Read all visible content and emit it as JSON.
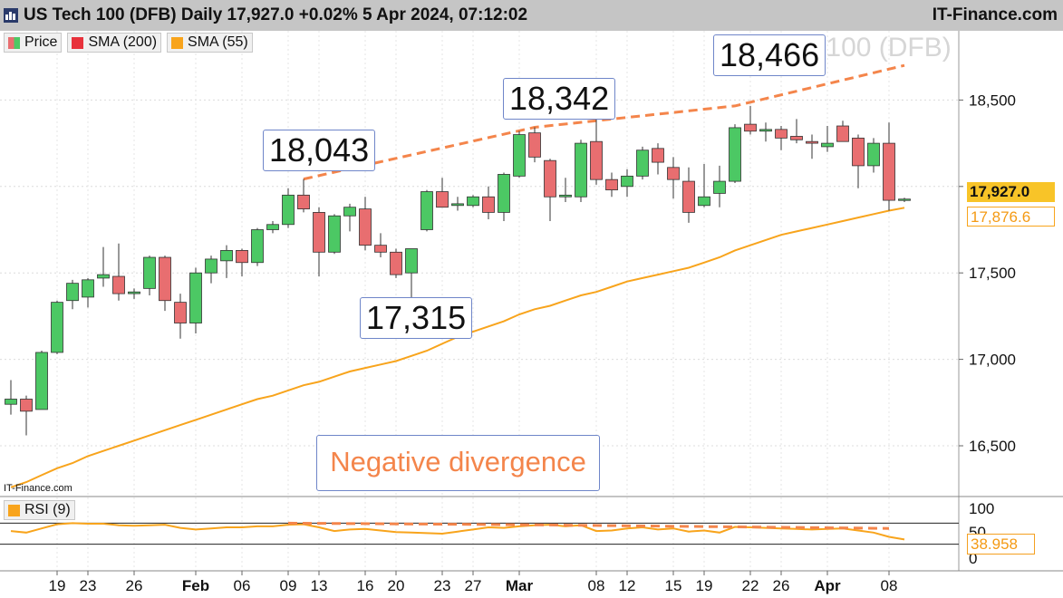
{
  "header": {
    "title": "US Tech 100 (DFB) Daily 17,927.0 +0.02% 5 Apr 2024, 07:12:02",
    "brand": "IT-Finance.com",
    "logo_icon": "demo-badge-icon"
  },
  "legend": {
    "items": [
      {
        "label": "Price",
        "icon": "price-candle-icon",
        "color": "#4cc864"
      },
      {
        "label": "SMA (200)",
        "icon": "sma200-swatch-icon",
        "color": "#e8323c"
      },
      {
        "label": "SMA (55)",
        "icon": "sma55-swatch-icon",
        "color": "#f8a41c"
      }
    ]
  },
  "watermark": "US Tech 100 (DFB)",
  "watermark_small": "IT-Finance.com",
  "annotations": {
    "high1": "18,043",
    "high2": "18,342",
    "high3": "18,466",
    "low1": "17,315",
    "divergence": "Negative divergence"
  },
  "price_badges": {
    "last": "17,927.0",
    "sma55": "17,876.6"
  },
  "rsi": {
    "legend_label": "RSI (9)",
    "value_label": "38.958",
    "color": "#f8a41c"
  },
  "colors": {
    "up": "#4cc864",
    "down": "#e86e70",
    "sma55": "#f8a41c",
    "trendline": "#f4854b",
    "annotation_border": "#6f86c9"
  },
  "chart_data": {
    "type": "candlestick",
    "title": "US Tech 100 (DFB) Daily",
    "ylim": [
      16200,
      18800
    ],
    "yticks": [
      16500,
      17000,
      17500,
      18000,
      18500
    ],
    "ytick_labels": [
      "16,500",
      "17,000",
      "17,500",
      "",
      "18,500"
    ],
    "x_tick_labels": [
      {
        "i": 3,
        "label": "19"
      },
      {
        "i": 5,
        "label": "23"
      },
      {
        "i": 8,
        "label": "26"
      },
      {
        "i": 12,
        "label": "Feb"
      },
      {
        "i": 15,
        "label": "06"
      },
      {
        "i": 18,
        "label": "09"
      },
      {
        "i": 20,
        "label": "13"
      },
      {
        "i": 23,
        "label": "16"
      },
      {
        "i": 25,
        "label": "20"
      },
      {
        "i": 28,
        "label": "23"
      },
      {
        "i": 30,
        "label": "27"
      },
      {
        "i": 33,
        "label": "Mar"
      },
      {
        "i": 38,
        "label": "08"
      },
      {
        "i": 40,
        "label": "12"
      },
      {
        "i": 43,
        "label": "15"
      },
      {
        "i": 45,
        "label": "19"
      },
      {
        "i": 48,
        "label": "22"
      },
      {
        "i": 50,
        "label": "26"
      },
      {
        "i": 53,
        "label": "Apr"
      },
      {
        "i": 57,
        "label": "08"
      }
    ],
    "candles": [
      {
        "o": 16740,
        "h": 16880,
        "l": 16680,
        "c": 16770
      },
      {
        "o": 16770,
        "h": 16790,
        "l": 16560,
        "c": 16700
      },
      {
        "o": 16710,
        "h": 17050,
        "l": 16710,
        "c": 17040
      },
      {
        "o": 17040,
        "h": 17340,
        "l": 17030,
        "c": 17330
      },
      {
        "o": 17340,
        "h": 17460,
        "l": 17290,
        "c": 17440
      },
      {
        "o": 17360,
        "h": 17470,
        "l": 17300,
        "c": 17460
      },
      {
        "o": 17470,
        "h": 17650,
        "l": 17420,
        "c": 17490
      },
      {
        "o": 17480,
        "h": 17670,
        "l": 17340,
        "c": 17380
      },
      {
        "o": 17380,
        "h": 17410,
        "l": 17350,
        "c": 17390
      },
      {
        "o": 17410,
        "h": 17600,
        "l": 17370,
        "c": 17590
      },
      {
        "o": 17590,
        "h": 17600,
        "l": 17280,
        "c": 17340
      },
      {
        "o": 17330,
        "h": 17380,
        "l": 17120,
        "c": 17210
      },
      {
        "o": 17210,
        "h": 17530,
        "l": 17150,
        "c": 17500
      },
      {
        "o": 17500,
        "h": 17600,
        "l": 17440,
        "c": 17580
      },
      {
        "o": 17570,
        "h": 17660,
        "l": 17470,
        "c": 17630
      },
      {
        "o": 17630,
        "h": 17640,
        "l": 17480,
        "c": 17560
      },
      {
        "o": 17560,
        "h": 17760,
        "l": 17540,
        "c": 17750
      },
      {
        "o": 17750,
        "h": 17800,
        "l": 17730,
        "c": 17780
      },
      {
        "o": 17780,
        "h": 17990,
        "l": 17760,
        "c": 17950
      },
      {
        "o": 17950,
        "h": 18043,
        "l": 17850,
        "c": 17870
      },
      {
        "o": 17850,
        "h": 17880,
        "l": 17480,
        "c": 17620
      },
      {
        "o": 17620,
        "h": 17840,
        "l": 17610,
        "c": 17830
      },
      {
        "o": 17830,
        "h": 17900,
        "l": 17740,
        "c": 17880
      },
      {
        "o": 17870,
        "h": 17940,
        "l": 17630,
        "c": 17660
      },
      {
        "o": 17660,
        "h": 17730,
        "l": 17590,
        "c": 17620
      },
      {
        "o": 17620,
        "h": 17640,
        "l": 17470,
        "c": 17490
      },
      {
        "o": 17500,
        "h": 17640,
        "l": 17315,
        "c": 17640
      },
      {
        "o": 17750,
        "h": 17980,
        "l": 17740,
        "c": 17970
      },
      {
        "o": 17970,
        "h": 18050,
        "l": 17880,
        "c": 17880
      },
      {
        "o": 17890,
        "h": 17940,
        "l": 17860,
        "c": 17900
      },
      {
        "o": 17890,
        "h": 17950,
        "l": 17880,
        "c": 17940
      },
      {
        "o": 17940,
        "h": 18000,
        "l": 17810,
        "c": 17850
      },
      {
        "o": 17850,
        "h": 18080,
        "l": 17800,
        "c": 18070
      },
      {
        "o": 18060,
        "h": 18320,
        "l": 18050,
        "c": 18300
      },
      {
        "o": 18310,
        "h": 18342,
        "l": 18140,
        "c": 18170
      },
      {
        "o": 18150,
        "h": 18160,
        "l": 17800,
        "c": 17940
      },
      {
        "o": 17940,
        "h": 18050,
        "l": 17910,
        "c": 17950
      },
      {
        "o": 17940,
        "h": 18270,
        "l": 17910,
        "c": 18250
      },
      {
        "o": 18260,
        "h": 18400,
        "l": 18010,
        "c": 18040
      },
      {
        "o": 18040,
        "h": 18080,
        "l": 17940,
        "c": 17980
      },
      {
        "o": 18000,
        "h": 18100,
        "l": 17940,
        "c": 18060
      },
      {
        "o": 18060,
        "h": 18230,
        "l": 18040,
        "c": 18210
      },
      {
        "o": 18220,
        "h": 18250,
        "l": 18070,
        "c": 18140
      },
      {
        "o": 18110,
        "h": 18170,
        "l": 17930,
        "c": 18040
      },
      {
        "o": 18030,
        "h": 18110,
        "l": 17790,
        "c": 17850
      },
      {
        "o": 17890,
        "h": 18130,
        "l": 17880,
        "c": 17940
      },
      {
        "o": 17960,
        "h": 18120,
        "l": 17880,
        "c": 18030
      },
      {
        "o": 18030,
        "h": 18360,
        "l": 18020,
        "c": 18340
      },
      {
        "o": 18360,
        "h": 18466,
        "l": 18300,
        "c": 18320
      },
      {
        "o": 18320,
        "h": 18370,
        "l": 18260,
        "c": 18330
      },
      {
        "o": 18330,
        "h": 18350,
        "l": 18210,
        "c": 18280
      },
      {
        "o": 18290,
        "h": 18390,
        "l": 18250,
        "c": 18270
      },
      {
        "o": 18260,
        "h": 18300,
        "l": 18160,
        "c": 18250
      },
      {
        "o": 18230,
        "h": 18350,
        "l": 18200,
        "c": 18250
      },
      {
        "o": 18350,
        "h": 18380,
        "l": 18260,
        "c": 18260
      },
      {
        "o": 18280,
        "h": 18300,
        "l": 17990,
        "c": 18120
      },
      {
        "o": 18120,
        "h": 18280,
        "l": 18080,
        "c": 18250
      },
      {
        "o": 18250,
        "h": 18370,
        "l": 17860,
        "c": 17920
      },
      {
        "o": 17920,
        "h": 17935,
        "l": 17910,
        "c": 17927
      }
    ],
    "sma55": [
      16260,
      16290,
      16330,
      16370,
      16400,
      16440,
      16470,
      16500,
      16530,
      16560,
      16590,
      16620,
      16650,
      16680,
      16710,
      16740,
      16770,
      16790,
      16820,
      16850,
      16870,
      16900,
      16930,
      16950,
      16970,
      16990,
      17020,
      17050,
      17090,
      17130,
      17160,
      17190,
      17220,
      17260,
      17290,
      17310,
      17340,
      17370,
      17390,
      17420,
      17450,
      17470,
      17490,
      17510,
      17530,
      17560,
      17590,
      17630,
      17660,
      17690,
      17720,
      17740,
      17760,
      17780,
      17800,
      17820,
      17840,
      17860,
      17877
    ],
    "trendline": {
      "points": [
        [
          19,
          18043
        ],
        [
          34,
          18342
        ],
        [
          47,
          18466
        ],
        [
          58,
          18700
        ]
      ]
    },
    "rsi": {
      "ylim": [
        0,
        100
      ],
      "levels": [
        30,
        70,
        100
      ],
      "tick_labels": [
        "100",
        "50",
        "0"
      ],
      "values": [
        55,
        52,
        60,
        68,
        70,
        69,
        69,
        66,
        65,
        66,
        67,
        61,
        58,
        60,
        62,
        62,
        64,
        64,
        67,
        68,
        62,
        55,
        58,
        59,
        56,
        53,
        52,
        51,
        50,
        54,
        58,
        62,
        61,
        64,
        66,
        67,
        64,
        66,
        55,
        56,
        60,
        62,
        58,
        60,
        54,
        56,
        52,
        63,
        62,
        61,
        60,
        59,
        58,
        59,
        60,
        56,
        52,
        44,
        39
      ],
      "trendline": {
        "points": [
          [
            18,
            70
          ],
          [
            33,
            67
          ],
          [
            57,
            60
          ]
        ]
      }
    }
  }
}
